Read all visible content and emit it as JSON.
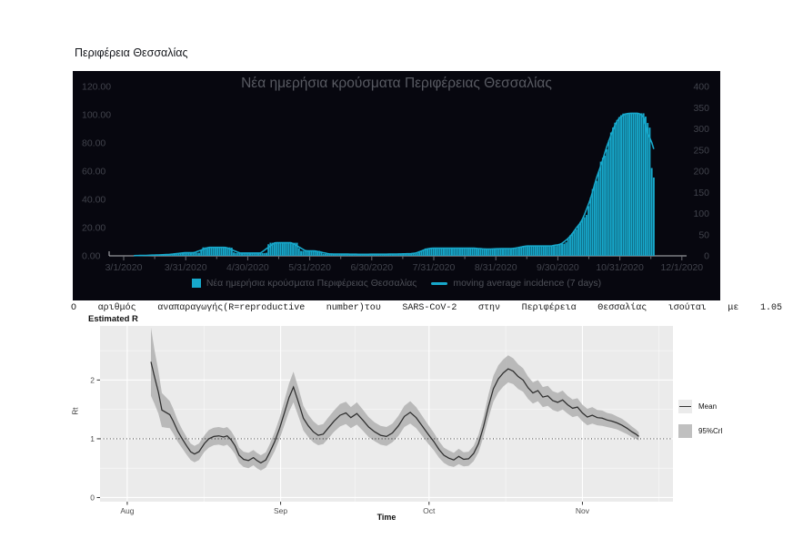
{
  "page": {
    "title": "Περιφέρεια Θεσσαλίας"
  },
  "incidence_chart": {
    "title": "Νέα ημερήσια κρούσματα Περιφέρειας Θεσσαλίας",
    "legend": [
      {
        "label": "Νέα ημερήσια κρούσματα Περιφέρειας Θεσσαλίας",
        "type": "square"
      },
      {
        "label": "moving average incidence (7 days)",
        "type": "line"
      }
    ],
    "colors": {
      "background": "#07070f",
      "bar": "#17a8cb",
      "title_text": "#585a62",
      "axis_text": "#41434c",
      "axis_line": "#b7b8bc",
      "tick": "#6f7076",
      "legend_text": "#4e5058"
    }
  },
  "r_text": {
    "content": "Ο αριθμός αναπαραγωγής(R=reproductive number)του SARS-CoV-2 στην Περιφέρεια Θεσσαλίας ισούται με 1.05"
  },
  "r_chart": {
    "title": "Estimated R",
    "xlabel": "Time",
    "ylabel": "Rt",
    "legend": [
      {
        "label": "Mean",
        "type": "line"
      },
      {
        "label": "95%CrI",
        "type": "ribbon"
      }
    ],
    "colors": {
      "panel": "#ebebeb",
      "grid": "#ffffff",
      "ribbon": "#b4b4b4",
      "line": "#2e2e2e",
      "axis_text": "#4f4f4f",
      "tick": "#333333"
    }
  },
  "chart_data": [
    {
      "type": "bar",
      "title": "Νέα ημερήσια κρούσματα Περιφέρειας Θεσσαλίας",
      "x_tick_labels": [
        "3/1/2020",
        "3/31/2020",
        "4/30/2020",
        "5/31/2020",
        "6/30/2020",
        "7/31/2020",
        "8/31/2020",
        "9/30/2020",
        "10/31/2020",
        "12/1/2020"
      ],
      "y_left": {
        "label_implied": "daily cases",
        "min": 0,
        "max": 120,
        "tick_step": 20,
        "tick_labels": [
          "0.00",
          "20.00",
          "40.00",
          "60.00",
          "80.00",
          "100.00",
          "120.00"
        ]
      },
      "y_right": {
        "label_implied": "moving average incidence",
        "min": 0,
        "max": 400,
        "tick_step": 50,
        "tick_labels": [
          "0",
          "50",
          "100",
          "150",
          "200",
          "250",
          "300",
          "350",
          "400"
        ]
      },
      "series": [
        {
          "name": "Νέα ημερήσια κρούσματα Περιφέρειας Θεσσαλίας",
          "type": "bar",
          "axis": "left",
          "envelope_months_values": [
            [
              0,
              0
            ],
            [
              0.3,
              0.25
            ],
            [
              0.6,
              0.7
            ],
            [
              0.85,
              1.3
            ],
            [
              0.9,
              2.2
            ],
            [
              1.23,
              2.2
            ],
            [
              1.27,
              6
            ],
            [
              1.74,
              6
            ],
            [
              1.78,
              2
            ],
            [
              2.3,
              2
            ],
            [
              2.34,
              9.3
            ],
            [
              2.8,
              9.3
            ],
            [
              2.84,
              3.5
            ],
            [
              3.18,
              3.5
            ],
            [
              3.22,
              1.4
            ],
            [
              3.8,
              1.1
            ],
            [
              4.3,
              1.2
            ],
            [
              4.72,
              1.6
            ],
            [
              4.8,
              3.2
            ],
            [
              4.87,
              5.4
            ],
            [
              5.75,
              5.4
            ],
            [
              5.8,
              4.5
            ],
            [
              5.95,
              5
            ],
            [
              6.35,
              5.2
            ],
            [
              6.42,
              7
            ],
            [
              6.98,
              7
            ],
            [
              7.02,
              8.6
            ],
            [
              7.12,
              8.6
            ],
            [
              7.2,
              14.6
            ],
            [
              7.3,
              18.9
            ],
            [
              7.38,
              25.4
            ],
            [
              7.46,
              28.6
            ],
            [
              7.52,
              40
            ],
            [
              7.57,
              49
            ],
            [
              7.63,
              53.4
            ],
            [
              7.7,
              68.4
            ],
            [
              7.77,
              71.6
            ],
            [
              7.85,
              86.7
            ],
            [
              7.92,
              94.2
            ],
            [
              8,
              99
            ],
            [
              8.06,
              101
            ],
            [
              8.4,
              101
            ],
            [
              8.44,
              95
            ],
            [
              8.49,
              90
            ],
            [
              8.52,
              55.5
            ],
            [
              8.56,
              55.5
            ],
            [
              8.57,
              0
            ]
          ],
          "note": "months measured from 3/1/2020; values on left axis (daily cases), peak plateau ~101 ≈ 337 on right axis"
        },
        {
          "name": "moving average incidence (7 days)",
          "type": "line",
          "axis": "right",
          "derived": "7-day moving average of the daily bar envelope (overlaps bar silhouette)"
        }
      ]
    },
    {
      "type": "line",
      "title": "Estimated R",
      "xlabel": "Time",
      "ylabel": "Rt",
      "x_tick_labels": [
        "Aug",
        "Sep",
        "Oct",
        "Nov"
      ],
      "x_tick_days": [
        0,
        31,
        61,
        92
      ],
      "x_minor_days": [
        15.5,
        46,
        76.5,
        107.5
      ],
      "x_domain_days": [
        -5.5,
        110.3
      ],
      "y_ticks": [
        0,
        1,
        2
      ],
      "y_minor": [
        0.5,
        1.5,
        2.5
      ],
      "y_domain": [
        -0.07,
        2.92
      ],
      "reference_line_y": 1,
      "final_R": 1.05,
      "days": [
        4.8,
        5.5,
        6.3,
        7,
        7.8,
        8.6,
        9.3,
        10.2,
        11.1,
        12,
        12.8,
        13.6,
        14.5,
        15.6,
        16.5,
        17.5,
        18.5,
        19.5,
        20.2,
        21,
        21.8,
        22.6,
        23.5,
        24.5,
        25.5,
        26.2,
        27,
        28,
        28.8,
        29.8,
        30.8,
        31.8,
        32.7,
        33.6,
        34.6,
        35.6,
        36.6,
        37.6,
        38.6,
        39.6,
        40.6,
        41.8,
        43,
        44.2,
        45.2,
        46.4,
        47.6,
        48.8,
        50,
        51.2,
        52.4,
        53.6,
        54.8,
        56,
        57.2,
        58.4,
        59.6,
        60.8,
        62,
        63,
        64,
        65,
        66,
        67,
        68,
        69,
        70,
        71,
        72,
        73,
        74,
        75,
        76,
        77,
        78,
        79,
        80,
        81,
        82,
        83,
        84,
        85,
        86,
        87,
        88,
        89,
        90,
        91,
        92,
        93,
        94,
        95,
        96,
        97,
        98,
        99,
        100,
        101,
        102,
        102.8,
        103.4
      ],
      "mean": [
        2.31,
        2.06,
        1.79,
        1.49,
        1.45,
        1.41,
        1.3,
        1.13,
        1.0,
        0.88,
        0.78,
        0.74,
        0.78,
        0.92,
        1.0,
        1.04,
        1.05,
        1.03,
        1.05,
        0.98,
        0.88,
        0.72,
        0.65,
        0.63,
        0.68,
        0.63,
        0.59,
        0.64,
        0.77,
        0.95,
        1.18,
        1.45,
        1.7,
        1.88,
        1.62,
        1.35,
        1.22,
        1.12,
        1.06,
        1.08,
        1.18,
        1.3,
        1.4,
        1.44,
        1.36,
        1.43,
        1.32,
        1.2,
        1.12,
        1.06,
        1.04,
        1.1,
        1.22,
        1.38,
        1.45,
        1.36,
        1.22,
        1.08,
        0.95,
        0.82,
        0.72,
        0.67,
        0.64,
        0.7,
        0.65,
        0.66,
        0.75,
        0.92,
        1.2,
        1.55,
        1.85,
        2.02,
        2.12,
        2.19,
        2.15,
        2.06,
        2.0,
        1.87,
        1.78,
        1.82,
        1.71,
        1.73,
        1.65,
        1.62,
        1.66,
        1.58,
        1.52,
        1.54,
        1.44,
        1.37,
        1.4,
        1.36,
        1.35,
        1.32,
        1.3,
        1.27,
        1.23,
        1.18,
        1.12,
        1.08,
        1.04
      ],
      "ci_halfwidth": [
        0.58,
        0.46,
        0.36,
        0.29,
        0.26,
        0.23,
        0.21,
        0.18,
        0.16,
        0.15,
        0.14,
        0.14,
        0.14,
        0.14,
        0.15,
        0.15,
        0.15,
        0.15,
        0.15,
        0.15,
        0.14,
        0.13,
        0.13,
        0.13,
        0.13,
        0.13,
        0.13,
        0.13,
        0.14,
        0.16,
        0.18,
        0.21,
        0.24,
        0.26,
        0.24,
        0.21,
        0.19,
        0.18,
        0.17,
        0.17,
        0.18,
        0.18,
        0.19,
        0.19,
        0.18,
        0.19,
        0.18,
        0.17,
        0.16,
        0.16,
        0.16,
        0.16,
        0.17,
        0.18,
        0.19,
        0.18,
        0.17,
        0.16,
        0.15,
        0.14,
        0.13,
        0.13,
        0.12,
        0.13,
        0.12,
        0.12,
        0.13,
        0.15,
        0.17,
        0.2,
        0.22,
        0.23,
        0.23,
        0.23,
        0.22,
        0.21,
        0.2,
        0.19,
        0.18,
        0.18,
        0.17,
        0.17,
        0.16,
        0.16,
        0.16,
        0.15,
        0.15,
        0.15,
        0.14,
        0.14,
        0.14,
        0.13,
        0.13,
        0.12,
        0.12,
        0.11,
        0.11,
        0.1,
        0.09,
        0.08,
        0.07
      ],
      "legend": [
        "Mean",
        "95%CrI"
      ]
    }
  ]
}
